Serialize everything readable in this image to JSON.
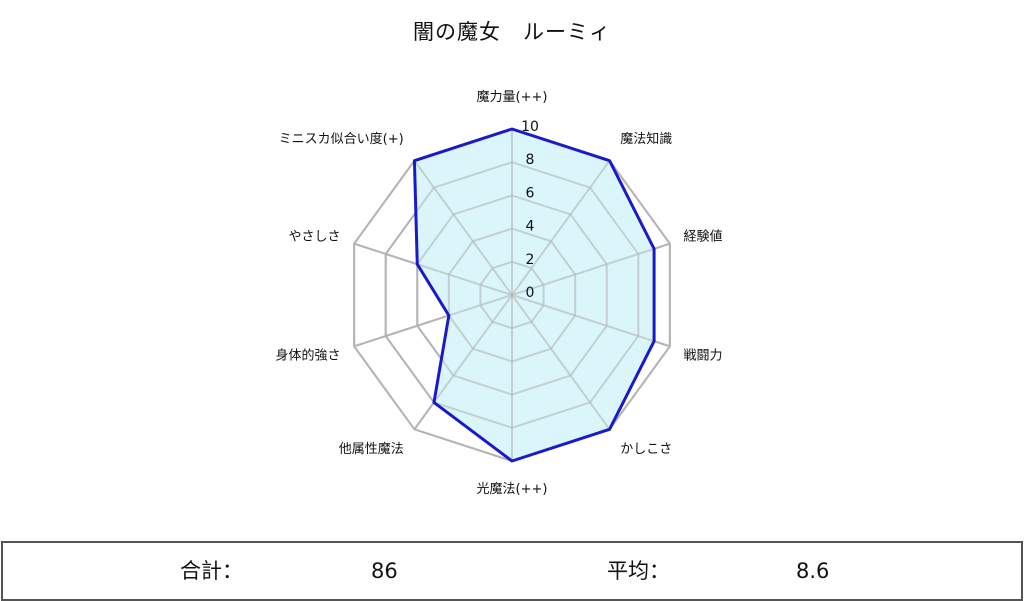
{
  "chart_data": {
    "type": "radar",
    "title": "闇の魔女　ルーミィ",
    "axes": [
      "魔力量(++)",
      "魔法知識",
      "経験値",
      "戦闘力",
      "かしこさ",
      "光魔法(++)",
      "他属性魔法",
      "身体的強さ",
      "やさしさ",
      "ミニスカ似合い度(+)"
    ],
    "values": [
      10,
      10,
      9,
      9,
      10,
      10,
      8,
      4,
      6,
      10
    ],
    "range": [
      0,
      10
    ],
    "ticks": [
      "0",
      "2",
      "4",
      "6",
      "8",
      "10"
    ],
    "series_color": "#1a1acc",
    "fill_color": "#d8f6fa",
    "grid_color": "#b4b4b4"
  },
  "summary": {
    "total_label": "合計：",
    "total_value": "86",
    "average_label": "平均：",
    "average_value": "8.6"
  }
}
